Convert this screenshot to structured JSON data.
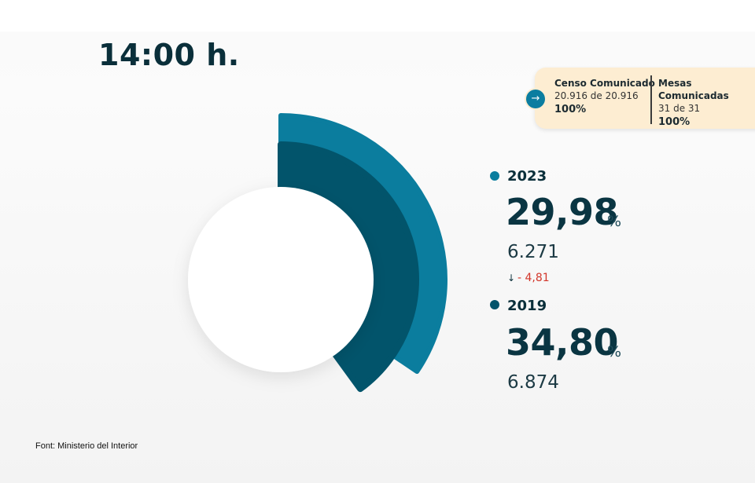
{
  "header": {
    "time": "14:00 h."
  },
  "info_card": {
    "census": {
      "label": "Censo Comunicado",
      "detail": "20.916 de 20.916",
      "percent": "100%"
    },
    "tables": {
      "label": "Mesas Comunicadas",
      "detail": "31 de 31",
      "percent": "100%"
    },
    "arrow_icon": "arrow-right-icon"
  },
  "colors": {
    "series_2023": "#0b7d9e",
    "series_2019": "#02546b",
    "negative": "#d2362a",
    "card_bg": "#fdedd2"
  },
  "chart_data": {
    "type": "radial-bar",
    "series": [
      {
        "name": "2023",
        "percent": 29.98,
        "percent_label": "29,98",
        "unit": "%",
        "votes": "6.271",
        "color": "#0b7d9e"
      },
      {
        "name": "2019",
        "percent": 34.8,
        "percent_label": "34,80",
        "unit": "%",
        "votes": "6.874",
        "color": "#02546b"
      }
    ],
    "difference": {
      "label": "- 4,81",
      "direction": "down",
      "icon": "arrow-down-icon"
    }
  },
  "footer": {
    "source": "Font: Ministerio del Interior"
  }
}
